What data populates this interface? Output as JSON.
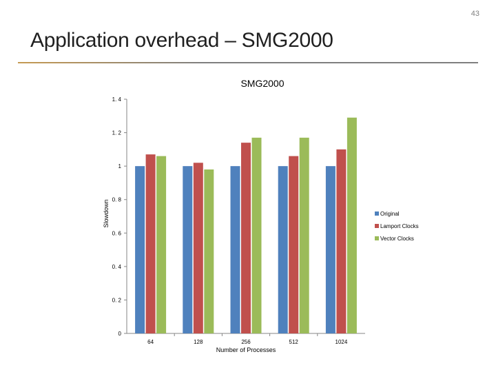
{
  "slide": {
    "page_number": "43",
    "title": "Application overhead – SMG2000"
  },
  "chart_data": {
    "type": "bar",
    "title": "SMG2000",
    "xlabel": "Number of Processes",
    "ylabel": "Slowdown",
    "categories": [
      "64",
      "128",
      "256",
      "512",
      "1024"
    ],
    "ylim": [
      0,
      1.4
    ],
    "yticks": [
      0,
      0.2,
      0.4,
      0.6,
      0.8,
      1,
      1.2,
      1.4
    ],
    "ytick_labels": [
      "0",
      "0. 2",
      "0. 4",
      "0. 6",
      "0. 8",
      "1",
      "1. 2",
      "1. 4"
    ],
    "grid": false,
    "legend_position": "right",
    "series": [
      {
        "name": "Original",
        "color": "#4f81bd",
        "values": [
          1.0,
          1.0,
          1.0,
          1.0,
          1.0
        ]
      },
      {
        "name": "Lamport Clocks",
        "color": "#c0504d",
        "values": [
          1.07,
          1.02,
          1.14,
          1.06,
          1.1
        ]
      },
      {
        "name": "Vector Clocks",
        "color": "#9bbb59",
        "values": [
          1.06,
          0.98,
          1.17,
          1.17,
          1.29
        ]
      }
    ]
  }
}
